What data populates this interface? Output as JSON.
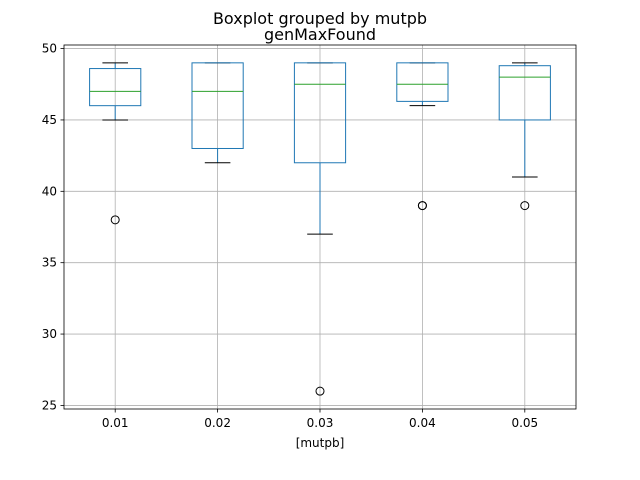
{
  "chart_data": {
    "type": "box",
    "suptitle": "Boxplot grouped by mutpb",
    "title": "genMaxFound",
    "xlabel": "[mutpb]",
    "ylabel": "",
    "categories": [
      "0.01",
      "0.02",
      "0.03",
      "0.04",
      "0.05"
    ],
    "boxes": [
      {
        "whisker_low": 45,
        "q1": 46,
        "median": 47,
        "q3": 48.6,
        "whisker_high": 49,
        "outliers": [
          38
        ]
      },
      {
        "whisker_low": 42,
        "q1": 43,
        "median": 47,
        "q3": 49,
        "whisker_high": 49,
        "outliers": []
      },
      {
        "whisker_low": 37,
        "q1": 42,
        "median": 47.5,
        "q3": 49,
        "whisker_high": 49,
        "outliers": [
          26
        ]
      },
      {
        "whisker_low": 46,
        "q1": 46.3,
        "median": 47.5,
        "q3": 49,
        "whisker_high": 49,
        "outliers": [
          39,
          39
        ]
      },
      {
        "whisker_low": 41,
        "q1": 45,
        "median": 48,
        "q3": 48.8,
        "whisker_high": 49,
        "outliers": [
          39
        ]
      }
    ],
    "yticks": [
      25,
      30,
      35,
      40,
      45,
      50
    ],
    "ylim": [
      24.75,
      50.25
    ],
    "grid": true,
    "legend": false,
    "colors": {
      "box": "#1f77b4",
      "median": "#2ca02c",
      "whisker": "#000000",
      "grid": "#b0b0b0",
      "axis": "#000000"
    }
  }
}
